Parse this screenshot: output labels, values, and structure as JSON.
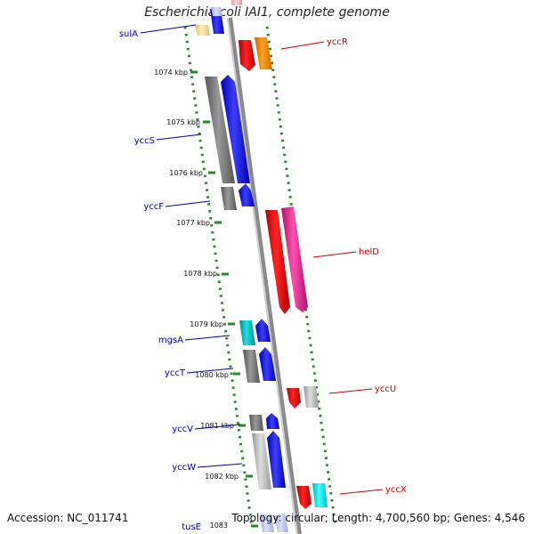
{
  "title": "Escherichia coli IAI1, complete genome",
  "footer": {
    "accession": "Accession: NC_011741",
    "stats": "Topology: circular; Length: 4,700,560 bp; Genes: 4,546"
  },
  "colors": {
    "backbone": "#8a8a8a",
    "tick": "#2a8a2a",
    "label_left": "#0000aa",
    "label_right": "#cc0000"
  },
  "kbp_labels": [
    "1074 kbp",
    "1075 kbp",
    "1076 kbp",
    "1077 kbp",
    "1078 kbp",
    "1079 kbp",
    "1080 kbp",
    "1081 kbp",
    "1082 kbp",
    "1083"
  ],
  "genes_left": [
    {
      "name": "sulA"
    },
    {
      "name": "yccS"
    },
    {
      "name": "yccF"
    },
    {
      "name": "mgsA"
    },
    {
      "name": "yccT"
    },
    {
      "name": "yccV"
    },
    {
      "name": "yccW"
    },
    {
      "name": "tusE"
    }
  ],
  "genes_right": [
    {
      "name": "yccR"
    },
    {
      "name": "helD"
    },
    {
      "name": "yccU"
    },
    {
      "name": "yccX"
    }
  ]
}
